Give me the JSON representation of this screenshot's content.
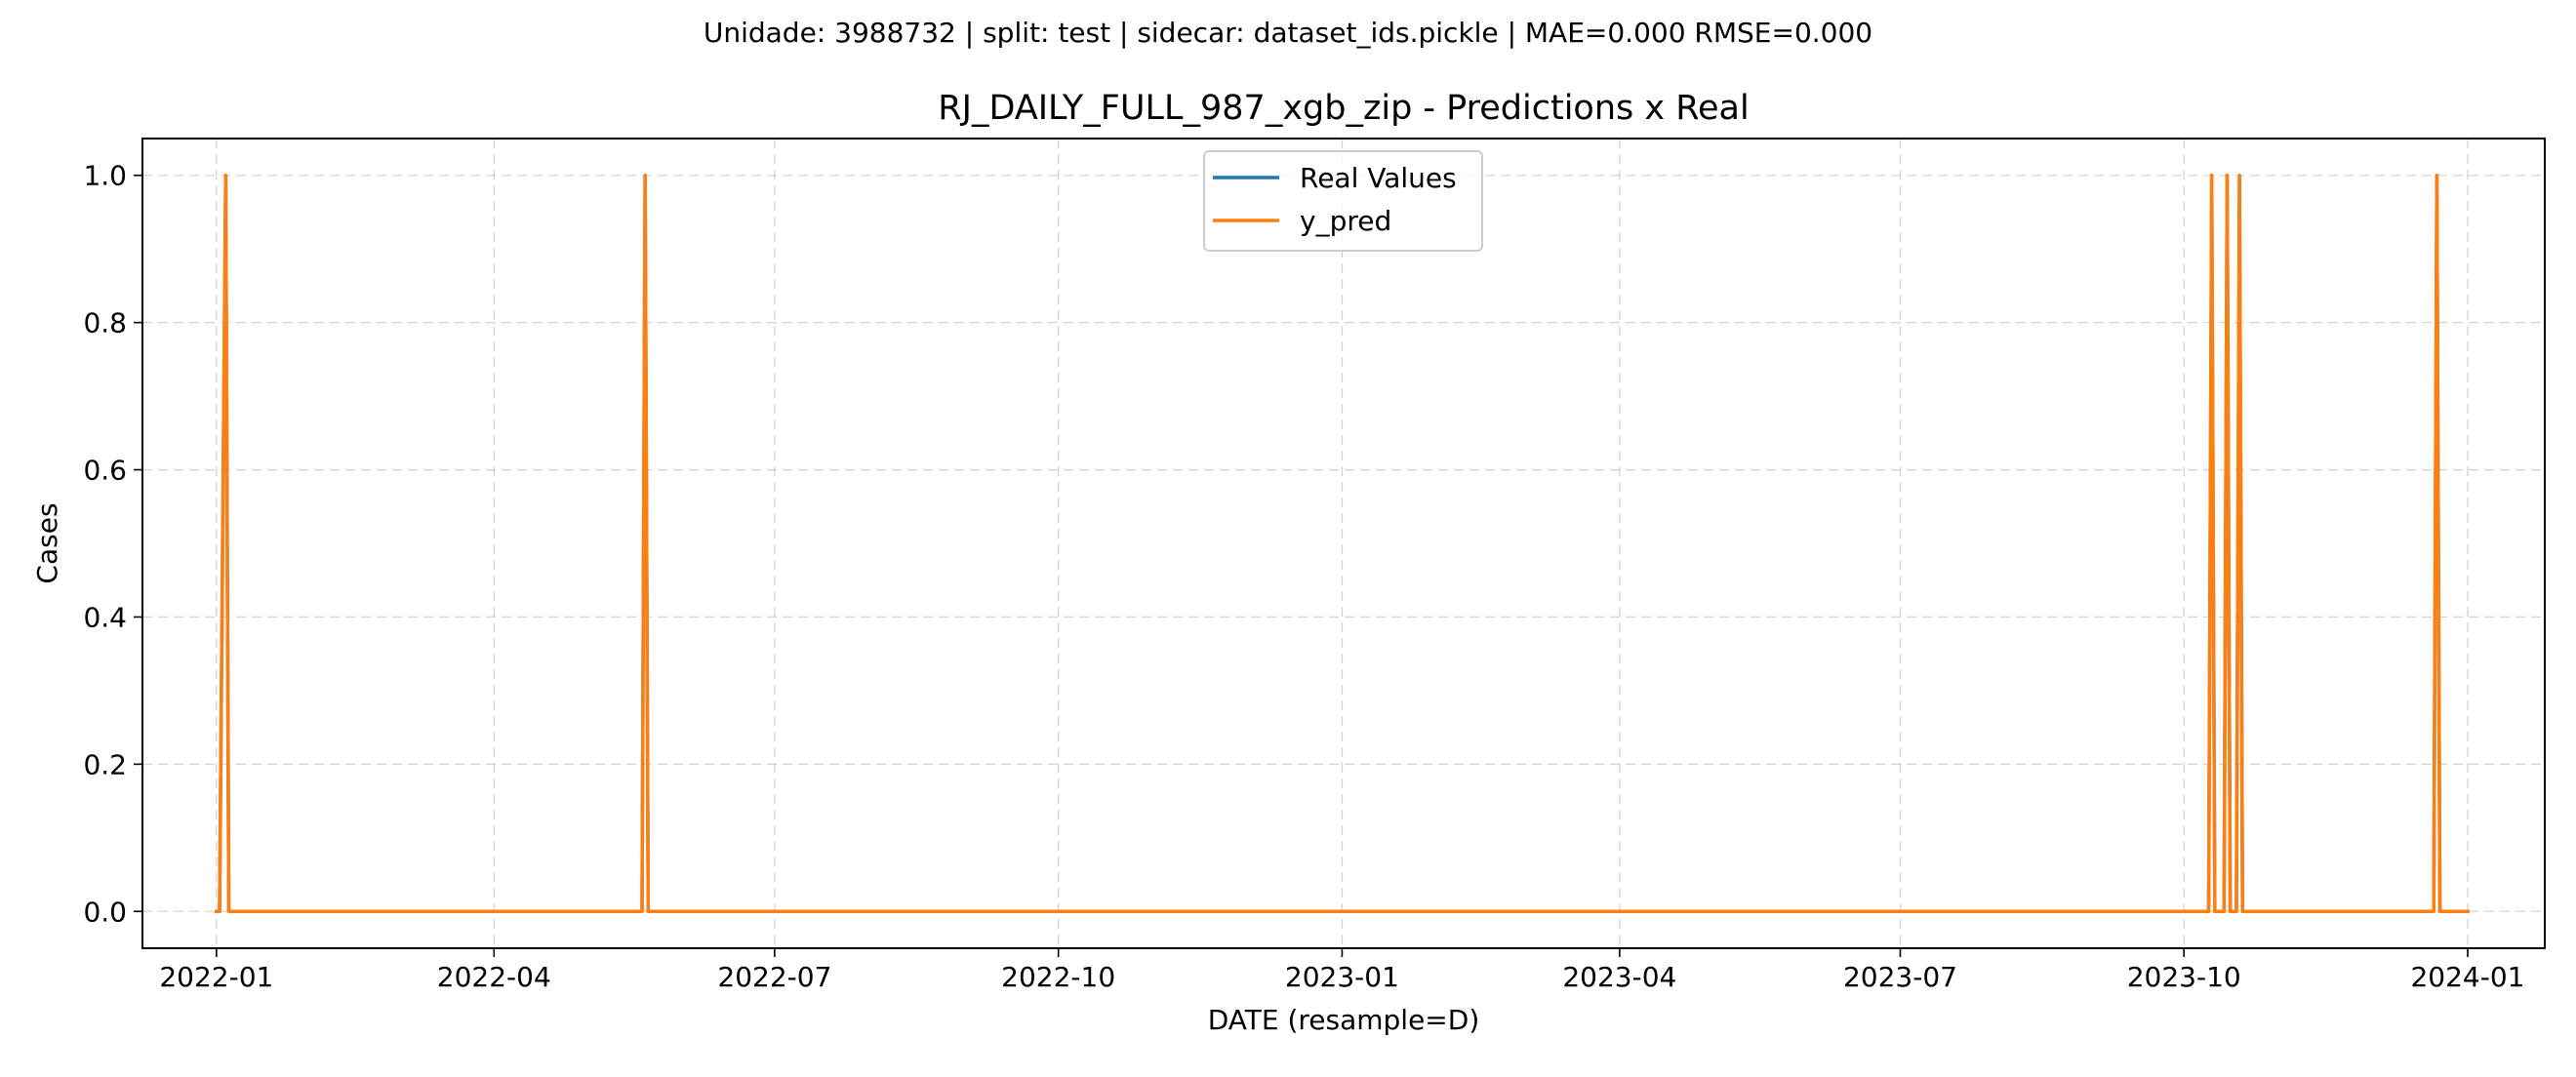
{
  "suptitle": "Unidade: 3988732 | split: test | sidecar: dataset_ids.pickle | MAE=0.000  RMSE=0.000",
  "chart_data": {
    "type": "line",
    "title": "RJ_DAILY_FULL_987_xgb_zip - Predictions x Real",
    "xlabel": "DATE (resample=D)",
    "ylabel": "Cases",
    "x_range": [
      "2021-12-08",
      "2024-01-26"
    ],
    "ylim": [
      -0.05,
      1.05
    ],
    "x_ticks": [
      "2022-01",
      "2022-04",
      "2022-07",
      "2022-10",
      "2023-01",
      "2023-04",
      "2023-07",
      "2023-10",
      "2024-01"
    ],
    "y_ticks": [
      "0.0",
      "0.2",
      "0.4",
      "0.6",
      "0.8",
      "1.0"
    ],
    "grid": true,
    "legend_position": "upper center",
    "series": [
      {
        "name": "Real Values",
        "color": "#1f77b4",
        "x": [
          "2022-01-01",
          "2022-01-02",
          "2022-01-04",
          "2022-01-05",
          "2022-05-19",
          "2022-05-20",
          "2022-05-21",
          "2023-10-09",
          "2023-10-10",
          "2023-10-11",
          "2023-10-14",
          "2023-10-15",
          "2023-10-16",
          "2023-10-17",
          "2023-10-18",
          "2023-10-19",
          "2023-10-20",
          "2023-10-21",
          "2023-12-21",
          "2023-12-22",
          "2023-12-23",
          "2024-01-01"
        ],
        "values": [
          0,
          0,
          1,
          0,
          0,
          1,
          0,
          0,
          1,
          0,
          0,
          1,
          0,
          0,
          0,
          1,
          0,
          0,
          0,
          1,
          0,
          0
        ]
      },
      {
        "name": "y_pred",
        "color": "#ff7f0e",
        "x": [
          "2022-01-01",
          "2022-01-02",
          "2022-01-04",
          "2022-01-05",
          "2022-05-19",
          "2022-05-20",
          "2022-05-21",
          "2023-10-09",
          "2023-10-10",
          "2023-10-11",
          "2023-10-14",
          "2023-10-15",
          "2023-10-16",
          "2023-10-17",
          "2023-10-18",
          "2023-10-19",
          "2023-10-20",
          "2023-10-21",
          "2023-12-21",
          "2023-12-22",
          "2023-12-23",
          "2024-01-01"
        ],
        "values": [
          0,
          0,
          1,
          0,
          0,
          1,
          0,
          0,
          1,
          0,
          0,
          1,
          0,
          0,
          0,
          1,
          0,
          0,
          0,
          1,
          0,
          0
        ]
      }
    ]
  }
}
